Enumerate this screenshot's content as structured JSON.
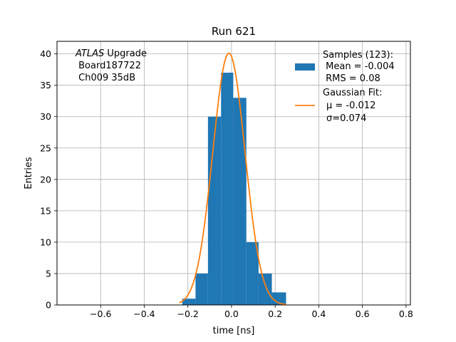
{
  "chart_data": {
    "type": "bar",
    "title": "Run 621",
    "xlabel": "time [ns]",
    "ylabel": "Entries",
    "xlim": [
      -0.8,
      0.82
    ],
    "ylim": [
      0,
      42
    ],
    "grid": true,
    "x_ticks": [
      {
        "value": -0.6,
        "label": "−0.6"
      },
      {
        "value": -0.4,
        "label": "−0.4"
      },
      {
        "value": -0.2,
        "label": "−0.2"
      },
      {
        "value": 0.0,
        "label": "0.0"
      },
      {
        "value": 0.2,
        "label": "0.2"
      },
      {
        "value": 0.4,
        "label": "0.4"
      },
      {
        "value": 0.6,
        "label": "0.6"
      },
      {
        "value": 0.8,
        "label": "0.8"
      }
    ],
    "y_ticks": [
      {
        "value": 0,
        "label": "0"
      },
      {
        "value": 5,
        "label": "5"
      },
      {
        "value": 10,
        "label": "10"
      },
      {
        "value": 15,
        "label": "15"
      },
      {
        "value": 20,
        "label": "20"
      },
      {
        "value": 25,
        "label": "25"
      },
      {
        "value": 30,
        "label": "30"
      },
      {
        "value": 35,
        "label": "35"
      },
      {
        "value": 40,
        "label": "40"
      }
    ],
    "histogram": {
      "color": "#1f77b4",
      "bin_edges": [
        -0.226,
        -0.165,
        -0.108,
        -0.048,
        0.008,
        0.068,
        0.124,
        0.185,
        0.25
      ],
      "counts": [
        1,
        5,
        30,
        37,
        33,
        10,
        5,
        2
      ]
    },
    "gaussian_fit": {
      "color": "#ff7f0e",
      "amplitude": 40.1,
      "mu": -0.012,
      "sigma": 0.074,
      "x_range": [
        -0.24,
        0.25
      ]
    },
    "annotation": {
      "line1_italic": "ATLAS",
      "line1_rest": " Upgrade",
      "line2": " Board187722",
      "line3": " Ch009 35dB"
    },
    "legend": {
      "placement": "top-right",
      "hist_lines": [
        "Samples (123):",
        " Mean = -0.004",
        " RMS = 0.08"
      ],
      "fit_lines": [
        "Gaussian Fit:",
        "μ = -0.012",
        "σ=0.074"
      ]
    }
  }
}
